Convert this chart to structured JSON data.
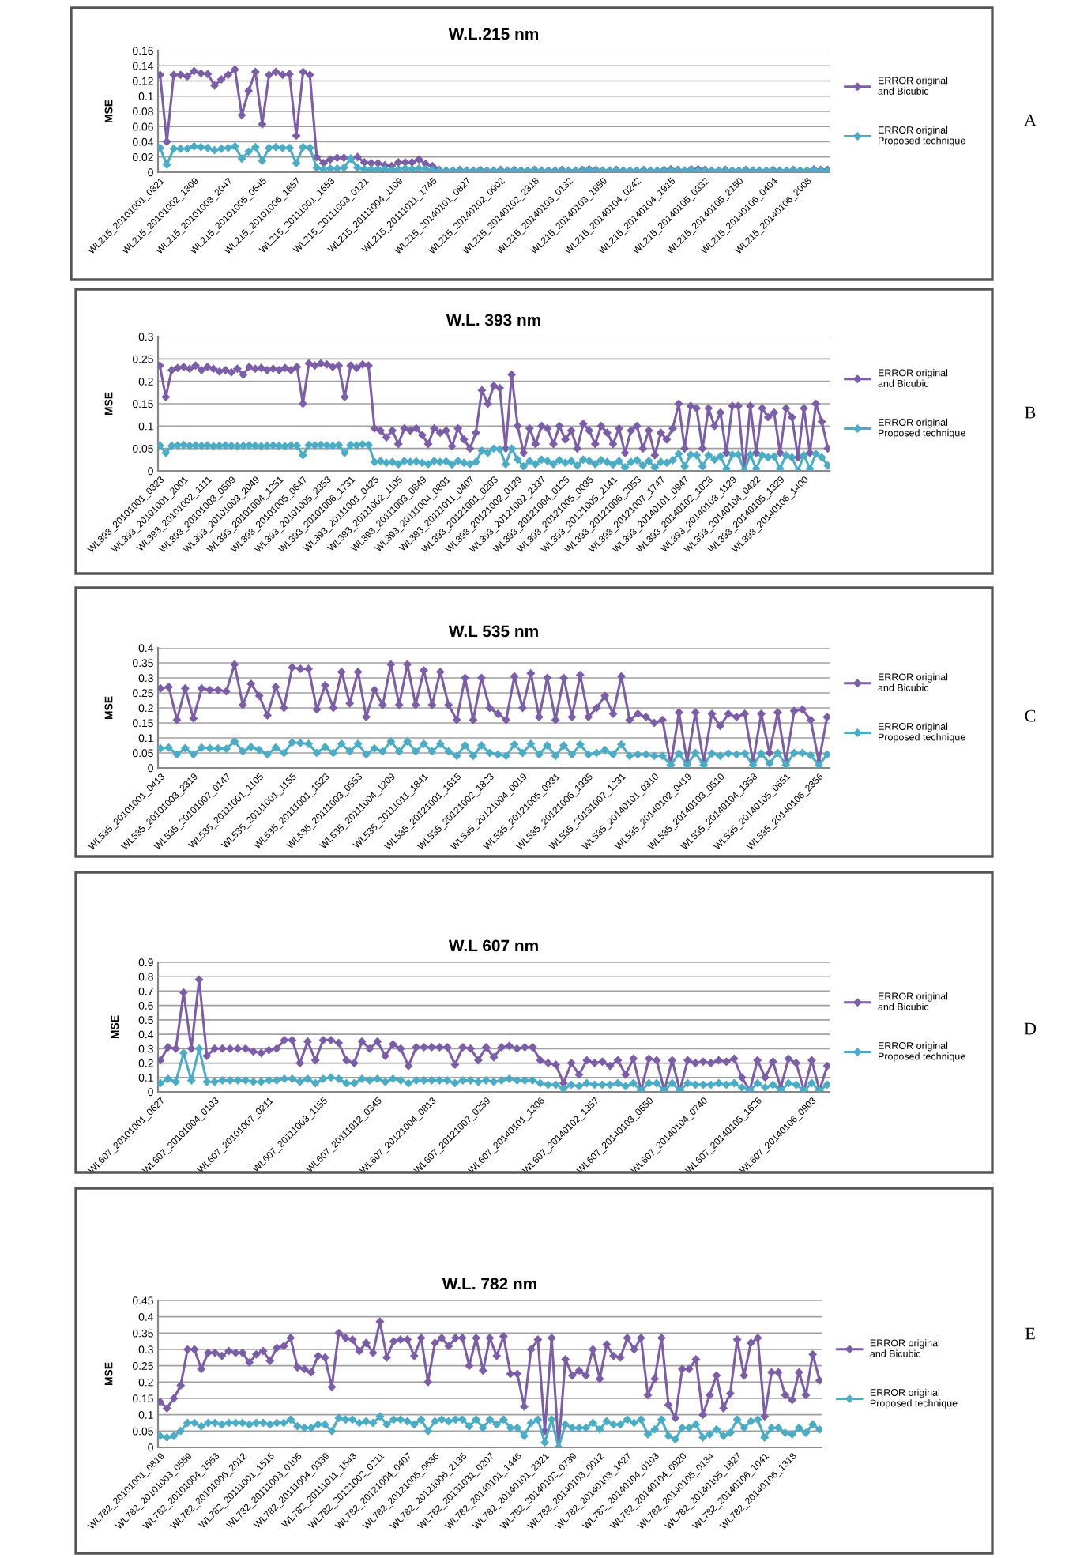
{
  "chart_data": [
    {
      "type": "line",
      "title": "W.L.215 nm",
      "ylabel": "MSE",
      "annotations": [
        "A"
      ],
      "grid": "y",
      "legend": "right",
      "marker": "diamond",
      "ylim": [
        0,
        0.16
      ],
      "yticks": [
        0,
        0.02,
        0.04,
        0.06,
        0.08,
        0.1,
        0.12,
        0.14,
        0.16
      ],
      "categories": [
        "WL215_20101001_0321",
        null,
        null,
        null,
        null,
        "WL215_20101002_1309",
        null,
        null,
        null,
        null,
        "WL215_20101003_2047",
        null,
        null,
        null,
        null,
        "WL215_20101005_0645",
        null,
        null,
        null,
        null,
        "WL215_20101006_1857",
        null,
        null,
        null,
        null,
        "WL215_20111001_1653",
        null,
        null,
        null,
        null,
        "WL215_20111003_0121",
        null,
        null,
        null,
        null,
        "WL215_20111004_1109",
        null,
        null,
        null,
        null,
        "WL215_20111011_1745",
        null,
        null,
        null,
        null,
        "WL215_20140101_0827",
        null,
        null,
        null,
        null,
        "WL215_20140102_0902",
        null,
        null,
        null,
        null,
        "WL215_20140102_2318",
        null,
        null,
        null,
        null,
        "WL215_20140103_0132",
        null,
        null,
        null,
        null,
        "WL215_20140103_1859",
        null,
        null,
        null,
        null,
        "WL215_20140104_0242",
        null,
        null,
        null,
        null,
        "WL215_20140104_1915",
        null,
        null,
        null,
        null,
        "WL215_20140105_0332",
        null,
        null,
        null,
        null,
        "WL215_20140105_2150",
        null,
        null,
        null,
        null,
        "WL215_20140106_0404",
        null,
        null,
        null,
        null,
        "WL215_20140106_2008",
        null,
        null,
        null
      ],
      "series": [
        {
          "name": "ERROR original and Bicubic",
          "color": "#7b5ea7",
          "values": [
            0.128,
            0.04,
            0.128,
            0.128,
            0.126,
            0.133,
            0.13,
            0.129,
            0.114,
            0.122,
            0.128,
            0.135,
            0.075,
            0.107,
            0.132,
            0.063,
            0.128,
            0.132,
            0.128,
            0.129,
            0.048,
            0.132,
            0.128,
            0.02,
            0.012,
            0.017,
            0.019,
            0.019,
            0.018,
            0.02,
            0.013,
            0.012,
            0.012,
            0.009,
            0.008,
            0.013,
            0.013,
            0.013,
            0.017,
            0.011,
            0.008,
            0.003,
            0.002,
            0.002,
            0.003,
            0.002,
            0.002,
            0.003,
            0.002,
            0.002,
            0.003,
            0.002,
            0.003,
            0.002,
            0.002,
            0.003,
            0.002,
            0.002,
            0.002,
            0.003,
            0.002,
            0.002,
            0.003,
            0.004,
            0.003,
            0.002,
            0.002,
            0.003,
            0.002,
            0.002,
            0.002,
            0.003,
            0.002,
            0.002,
            0.003,
            0.004,
            0.003,
            0.002,
            0.004,
            0.004,
            0.003,
            0.002,
            0.002,
            0.003,
            0.002,
            0.002,
            0.003,
            0.002,
            0.002,
            0.002,
            0.003,
            0.002,
            0.002,
            0.003,
            0.002,
            0.002,
            0.004,
            0.003,
            0.003
          ]
        },
        {
          "name": "ERROR original Proposed technique",
          "color": "#4bacc6",
          "values": [
            0.032,
            0.01,
            0.031,
            0.031,
            0.031,
            0.034,
            0.033,
            0.032,
            0.029,
            0.031,
            0.032,
            0.034,
            0.018,
            0.027,
            0.033,
            0.015,
            0.032,
            0.033,
            0.032,
            0.032,
            0.012,
            0.033,
            0.032,
            0.006,
            0.004,
            0.005,
            0.005,
            0.006,
            0.018,
            0.006,
            0.004,
            0.004,
            0.004,
            0.004,
            0.003,
            0.004,
            0.005,
            0.004,
            0.005,
            0.004,
            0.003,
            0.002,
            0.002,
            0.002,
            0.002,
            0.002,
            0.002,
            0.002,
            0.002,
            0.002,
            0.002,
            0.002,
            0.002,
            0.002,
            0.002,
            0.002,
            0.002,
            0.002,
            0.002,
            0.002,
            0.002,
            0.002,
            0.002,
            0.003,
            0.002,
            0.002,
            0.002,
            0.002,
            0.002,
            0.002,
            0.002,
            0.002,
            0.002,
            0.002,
            0.002,
            0.003,
            0.002,
            0.002,
            0.003,
            0.002,
            0.002,
            0.002,
            0.002,
            0.002,
            0.002,
            0.002,
            0.002,
            0.002,
            0.002,
            0.002,
            0.002,
            0.002,
            0.002,
            0.002,
            0.002,
            0.002,
            0.003,
            0.002,
            0.002
          ]
        }
      ]
    },
    {
      "type": "line",
      "title": "W.L. 393 nm",
      "ylabel": "MSE",
      "annotations": [
        "B"
      ],
      "grid": "y",
      "legend": "right",
      "marker": "diamond",
      "ylim": [
        0,
        0.3
      ],
      "yticks": [
        0,
        0.05,
        0.1,
        0.15,
        0.2,
        0.25,
        0.3
      ],
      "categories": [
        "WL393_20101001_0323",
        null,
        null,
        null,
        "WL393_20101001_2001",
        null,
        null,
        null,
        "WL393_20101002_1111",
        null,
        null,
        null,
        "WL393_20101003_0509",
        null,
        null,
        null,
        "WL393_20101003_2049",
        null,
        null,
        null,
        "WL393_20101004_1251",
        null,
        null,
        null,
        "WL393_20101005_0647",
        null,
        null,
        null,
        "WL393_20101005_2353",
        null,
        null,
        null,
        "WL393_20101006_1731",
        null,
        null,
        null,
        "WL393_20111001_0425",
        null,
        null,
        null,
        "WL393_20111002_1105",
        null,
        null,
        null,
        "WL393_20111003_0849",
        null,
        null,
        null,
        "WL393_20111004_0801",
        null,
        null,
        null,
        "WL393_20111011_0407",
        null,
        null,
        null,
        "WL393_20121001_0203",
        null,
        null,
        null,
        "WL393_20121002_0129",
        null,
        null,
        null,
        "WL393_20121002_2337",
        null,
        null,
        null,
        "WL393_20121004_0125",
        null,
        null,
        null,
        "WL393_20121005_0035",
        null,
        null,
        null,
        "WL393_20121005_2141",
        null,
        null,
        null,
        "WL393_20121006_2053",
        null,
        null,
        null,
        "WL393_20121007_1747",
        null,
        null,
        null,
        "WL393_20140101_0947",
        null,
        null,
        null,
        "WL393_20140102_1028",
        null,
        null,
        null,
        "WL393_20140103_1129",
        null,
        null,
        null,
        "WL393_20140104_0422",
        null,
        null,
        null,
        "WL393_20140105_1329",
        null,
        null,
        null,
        "WL393_20140106_1400",
        null,
        null,
        null,
        null
      ],
      "series": [
        {
          "name": "ERROR original and Bicubic",
          "color": "#7b5ea7",
          "values": [
            0.235,
            0.165,
            0.225,
            0.23,
            0.232,
            0.228,
            0.235,
            0.225,
            0.232,
            0.228,
            0.222,
            0.225,
            0.22,
            0.228,
            0.215,
            0.232,
            0.228,
            0.23,
            0.225,
            0.228,
            0.225,
            0.23,
            0.225,
            0.232,
            0.15,
            0.24,
            0.235,
            0.24,
            0.238,
            0.232,
            0.235,
            0.165,
            0.235,
            0.23,
            0.238,
            0.235,
            0.095,
            0.09,
            0.075,
            0.09,
            0.06,
            0.095,
            0.09,
            0.095,
            0.08,
            0.06,
            0.095,
            0.085,
            0.09,
            0.055,
            0.095,
            0.07,
            0.05,
            0.085,
            0.18,
            0.15,
            0.19,
            0.185,
            0.05,
            0.215,
            0.1,
            0.04,
            0.095,
            0.06,
            0.1,
            0.095,
            0.06,
            0.1,
            0.07,
            0.09,
            0.05,
            0.105,
            0.09,
            0.06,
            0.1,
            0.085,
            0.06,
            0.095,
            0.04,
            0.09,
            0.1,
            0.05,
            0.09,
            0.035,
            0.085,
            0.07,
            0.095,
            0.15,
            0.05,
            0.145,
            0.14,
            0.05,
            0.14,
            0.1,
            0.13,
            0.04,
            0.145,
            0.145,
            0.0,
            0.145,
            0.04,
            0.14,
            0.12,
            0.13,
            0.04,
            0.14,
            0.12,
            0.03,
            0.14,
            0.04,
            0.15,
            0.11,
            0.05
          ]
        },
        {
          "name": "ERROR original Proposed technique",
          "color": "#4bacc6",
          "values": [
            0.057,
            0.04,
            0.056,
            0.057,
            0.058,
            0.056,
            0.057,
            0.056,
            0.057,
            0.055,
            0.056,
            0.057,
            0.056,
            0.055,
            0.056,
            0.057,
            0.056,
            0.055,
            0.056,
            0.057,
            0.056,
            0.055,
            0.057,
            0.056,
            0.035,
            0.058,
            0.057,
            0.058,
            0.057,
            0.056,
            0.058,
            0.04,
            0.058,
            0.057,
            0.059,
            0.058,
            0.02,
            0.022,
            0.018,
            0.02,
            0.015,
            0.022,
            0.02,
            0.021,
            0.018,
            0.015,
            0.022,
            0.02,
            0.021,
            0.014,
            0.022,
            0.018,
            0.015,
            0.02,
            0.045,
            0.04,
            0.05,
            0.048,
            0.015,
            0.05,
            0.025,
            0.01,
            0.022,
            0.015,
            0.025,
            0.022,
            0.015,
            0.024,
            0.018,
            0.022,
            0.012,
            0.025,
            0.022,
            0.015,
            0.024,
            0.02,
            0.014,
            0.022,
            0.008,
            0.02,
            0.024,
            0.012,
            0.022,
            0.008,
            0.02,
            0.018,
            0.024,
            0.038,
            0.01,
            0.036,
            0.035,
            0.01,
            0.035,
            0.025,
            0.032,
            0.005,
            0.036,
            0.036,
            0.0,
            0.036,
            0.005,
            0.035,
            0.03,
            0.032,
            0.005,
            0.035,
            0.03,
            0.0,
            0.035,
            0.005,
            0.038,
            0.03,
            0.012
          ]
        }
      ]
    },
    {
      "type": "line",
      "title": "W.L 535 nm",
      "ylabel": "MSE",
      "annotations": [
        "C"
      ],
      "grid": "y",
      "legend": "right",
      "marker": "diamond",
      "ylim": [
        0,
        0.4
      ],
      "yticks": [
        0,
        0.05,
        0.1,
        0.15,
        0.2,
        0.25,
        0.3,
        0.35,
        0.4
      ],
      "categories": [
        "WL535_20101001_0413",
        null,
        null,
        null,
        "WL535_20101003_2319",
        null,
        null,
        null,
        "WL535_20101007_0147",
        null,
        null,
        null,
        "WL535_20111001_1105",
        null,
        null,
        null,
        "WL535_20111001_1155",
        null,
        null,
        null,
        "WL535_20111001_1523",
        null,
        null,
        null,
        "WL535_20111003_0553",
        null,
        null,
        null,
        "WL535_20111004_1209",
        null,
        null,
        null,
        "WL535_20111011_1841",
        null,
        null,
        null,
        "WL535_20121001_1615",
        null,
        null,
        null,
        "WL535_20121002_1823",
        null,
        null,
        null,
        "WL535_20121004_0019",
        null,
        null,
        null,
        "WL535_20121005_0931",
        null,
        null,
        null,
        "WL535_20121006_1935",
        null,
        null,
        null,
        "WL535_20131007_1231",
        null,
        null,
        null,
        "WL535_20140101_0310",
        null,
        null,
        null,
        "WL535_20140102_0419",
        null,
        null,
        null,
        "WL535_20140103_0510",
        null,
        null,
        null,
        "WL535_20140104_1358",
        null,
        null,
        null,
        "WL535_20140105_0651",
        null,
        null,
        null,
        "WL535_20140106_2356",
        null
      ],
      "series": [
        {
          "name": "ERROR original and Bicubic",
          "color": "#7b5ea7",
          "values": [
            0.265,
            0.27,
            0.16,
            0.265,
            0.165,
            0.265,
            0.26,
            0.26,
            0.255,
            0.345,
            0.21,
            0.28,
            0.24,
            0.175,
            0.27,
            0.2,
            0.335,
            0.33,
            0.33,
            0.195,
            0.275,
            0.2,
            0.32,
            0.215,
            0.32,
            0.17,
            0.26,
            0.21,
            0.345,
            0.21,
            0.345,
            0.21,
            0.325,
            0.21,
            0.32,
            0.21,
            0.16,
            0.3,
            0.16,
            0.3,
            0.2,
            0.18,
            0.16,
            0.305,
            0.2,
            0.315,
            0.17,
            0.3,
            0.16,
            0.3,
            0.17,
            0.31,
            0.17,
            0.2,
            0.24,
            0.18,
            0.305,
            0.16,
            0.18,
            0.17,
            0.15,
            0.16,
            0.01,
            0.185,
            0.02,
            0.185,
            0.02,
            0.18,
            0.14,
            0.18,
            0.17,
            0.18,
            0.02,
            0.18,
            0.05,
            0.185,
            0.02,
            0.19,
            0.195,
            0.16,
            0.02,
            0.17
          ]
        },
        {
          "name": "ERROR original Proposed technique",
          "color": "#4bacc6",
          "values": [
            0.065,
            0.068,
            0.045,
            0.066,
            0.045,
            0.068,
            0.066,
            0.065,
            0.064,
            0.088,
            0.055,
            0.07,
            0.06,
            0.045,
            0.068,
            0.05,
            0.085,
            0.083,
            0.08,
            0.05,
            0.07,
            0.05,
            0.08,
            0.055,
            0.08,
            0.045,
            0.065,
            0.055,
            0.088,
            0.055,
            0.088,
            0.055,
            0.08,
            0.055,
            0.08,
            0.055,
            0.04,
            0.075,
            0.04,
            0.075,
            0.05,
            0.045,
            0.04,
            0.078,
            0.05,
            0.08,
            0.045,
            0.075,
            0.04,
            0.075,
            0.045,
            0.078,
            0.045,
            0.05,
            0.06,
            0.045,
            0.078,
            0.04,
            0.045,
            0.045,
            0.04,
            0.04,
            0.01,
            0.048,
            0.01,
            0.05,
            0.01,
            0.048,
            0.04,
            0.048,
            0.045,
            0.048,
            0.01,
            0.048,
            0.015,
            0.05,
            0.01,
            0.05,
            0.05,
            0.042,
            0.01,
            0.045
          ]
        }
      ]
    },
    {
      "type": "line",
      "title": "W.L 607 nm",
      "ylabel": "MSE",
      "annotations": [
        "D"
      ],
      "grid": "y",
      "legend": "right",
      "marker": "diamond",
      "ylim": [
        0,
        0.9
      ],
      "yticks": [
        0,
        0.1,
        0.2,
        0.3,
        0.4,
        0.5,
        0.6,
        0.7,
        0.8,
        0.9
      ],
      "categories": [
        "WL607_20101001_0627",
        null,
        null,
        null,
        null,
        null,
        null,
        "WL607_20101004_0103",
        null,
        null,
        null,
        null,
        null,
        null,
        "WL607_20101007_0211",
        null,
        null,
        null,
        null,
        null,
        null,
        "WL607_20111003_1155",
        null,
        null,
        null,
        null,
        null,
        null,
        "WL607_20111012_0345",
        null,
        null,
        null,
        null,
        null,
        null,
        "WL607_20121004_0813",
        null,
        null,
        null,
        null,
        null,
        null,
        "WL607_20121007_0259",
        null,
        null,
        null,
        null,
        null,
        null,
        "WL607_20140101_1306",
        null,
        null,
        null,
        null,
        null,
        null,
        "WL607_20140102_1357",
        null,
        null,
        null,
        null,
        null,
        null,
        "WL607_20140103_0650",
        null,
        null,
        null,
        null,
        null,
        null,
        "WL607_20140104_0740",
        null,
        null,
        null,
        null,
        null,
        null,
        "WL607_20140105_1626",
        null,
        null,
        null,
        null,
        null,
        null,
        "WL607_20140106_0903",
        null,
        null
      ],
      "series": [
        {
          "name": "ERROR original and Bicubic",
          "color": "#7b5ea7",
          "values": [
            0.22,
            0.31,
            0.3,
            0.69,
            0.3,
            0.78,
            0.25,
            0.3,
            0.3,
            0.3,
            0.3,
            0.3,
            0.28,
            0.27,
            0.29,
            0.3,
            0.36,
            0.36,
            0.2,
            0.35,
            0.22,
            0.36,
            0.36,
            0.34,
            0.22,
            0.2,
            0.35,
            0.3,
            0.35,
            0.25,
            0.33,
            0.3,
            0.18,
            0.31,
            0.31,
            0.31,
            0.31,
            0.31,
            0.19,
            0.31,
            0.3,
            0.22,
            0.31,
            0.24,
            0.31,
            0.32,
            0.3,
            0.31,
            0.31,
            0.22,
            0.2,
            0.19,
            0.06,
            0.2,
            0.12,
            0.22,
            0.2,
            0.21,
            0.18,
            0.22,
            0.12,
            0.23,
            0.01,
            0.23,
            0.22,
            0.01,
            0.22,
            0.01,
            0.22,
            0.2,
            0.21,
            0.2,
            0.22,
            0.21,
            0.23,
            0.1,
            0.01,
            0.22,
            0.1,
            0.21,
            0.03,
            0.23,
            0.2,
            0.01,
            0.22,
            0.01,
            0.18
          ]
        },
        {
          "name": "ERROR original Proposed technique",
          "color": "#4bacc6",
          "values": [
            0.06,
            0.09,
            0.07,
            0.27,
            0.08,
            0.3,
            0.07,
            0.07,
            0.08,
            0.08,
            0.08,
            0.08,
            0.07,
            0.07,
            0.08,
            0.08,
            0.09,
            0.09,
            0.07,
            0.09,
            0.06,
            0.09,
            0.1,
            0.09,
            0.06,
            0.06,
            0.09,
            0.08,
            0.09,
            0.07,
            0.09,
            0.08,
            0.06,
            0.08,
            0.08,
            0.08,
            0.08,
            0.08,
            0.06,
            0.08,
            0.08,
            0.07,
            0.08,
            0.07,
            0.08,
            0.09,
            0.08,
            0.08,
            0.08,
            0.06,
            0.05,
            0.05,
            0.02,
            0.05,
            0.04,
            0.06,
            0.05,
            0.05,
            0.05,
            0.06,
            0.04,
            0.06,
            0.01,
            0.06,
            0.06,
            0.01,
            0.06,
            0.01,
            0.06,
            0.05,
            0.05,
            0.05,
            0.06,
            0.05,
            0.06,
            0.03,
            0.01,
            0.06,
            0.03,
            0.05,
            0.01,
            0.06,
            0.05,
            0.01,
            0.06,
            0.01,
            0.05
          ]
        }
      ]
    },
    {
      "type": "line",
      "title": "W.L. 782 nm",
      "ylabel": "MSE",
      "annotations": [
        "E"
      ],
      "grid": "y",
      "legend": "right",
      "marker": "diamond",
      "ylim": [
        0,
        0.45
      ],
      "yticks": [
        0,
        0.05,
        0.1,
        0.15,
        0.2,
        0.25,
        0.3,
        0.35,
        0.4,
        0.45
      ],
      "categories": [
        "WL782_20101001_0819",
        null,
        null,
        null,
        "WL782_20101003_0559",
        null,
        null,
        null,
        "WL782_20101004_1553",
        null,
        null,
        null,
        "WL782_20101006_2012",
        null,
        null,
        null,
        "WL782_20111001_1515",
        null,
        null,
        null,
        "WL782_20111003_0105",
        null,
        null,
        null,
        "WL782_20111004_0339",
        null,
        null,
        null,
        "WL782_20111011_1543",
        null,
        null,
        null,
        "WL782_20121002_0211",
        null,
        null,
        null,
        "WL782_20121004_0407",
        null,
        null,
        null,
        "WL782_20121005_0635",
        null,
        null,
        null,
        "WL782_20121006_2135",
        null,
        null,
        null,
        "WL782_20131031_0207",
        null,
        null,
        null,
        "WL782_20140101_1446",
        null,
        null,
        null,
        "WL782_20140101_2321",
        null,
        null,
        null,
        "WL782_20140102_0739",
        null,
        null,
        null,
        "WL782_20140103_0012",
        null,
        null,
        null,
        "WL782_20140103_1627",
        null,
        null,
        null,
        "WL782_20140104_0103",
        null,
        null,
        null,
        "WL782_20140104_0920",
        null,
        null,
        null,
        "WL782_20140105_0134",
        null,
        null,
        null,
        "WL782_20140105_1827",
        null,
        null,
        null,
        "WL782_20140106_1041",
        null,
        null,
        null,
        "WL782_20140106_1318",
        null,
        null,
        null,
        null
      ],
      "series": [
        {
          "name": "ERROR original and Bicubic",
          "color": "#7b5ea7",
          "values": [
            0.14,
            0.12,
            0.15,
            0.19,
            0.3,
            0.3,
            0.24,
            0.29,
            0.29,
            0.28,
            0.295,
            0.29,
            0.29,
            0.26,
            0.285,
            0.295,
            0.265,
            0.305,
            0.31,
            0.335,
            0.245,
            0.24,
            0.23,
            0.28,
            0.275,
            0.185,
            0.35,
            0.335,
            0.33,
            0.295,
            0.32,
            0.29,
            0.385,
            0.275,
            0.325,
            0.33,
            0.33,
            0.28,
            0.335,
            0.2,
            0.32,
            0.335,
            0.31,
            0.335,
            0.335,
            0.25,
            0.335,
            0.235,
            0.335,
            0.28,
            0.34,
            0.225,
            0.225,
            0.125,
            0.3,
            0.33,
            0.05,
            0.335,
            0.0,
            0.27,
            0.22,
            0.235,
            0.22,
            0.3,
            0.21,
            0.315,
            0.28,
            0.275,
            0.335,
            0.3,
            0.335,
            0.16,
            0.21,
            0.335,
            0.13,
            0.09,
            0.24,
            0.24,
            0.27,
            0.1,
            0.16,
            0.22,
            0.12,
            0.165,
            0.33,
            0.22,
            0.32,
            0.335,
            0.095,
            0.23,
            0.23,
            0.16,
            0.145,
            0.23,
            0.16,
            0.285,
            0.205
          ]
        },
        {
          "name": "ERROR original Proposed technique",
          "color": "#4bacc6",
          "values": [
            0.035,
            0.03,
            0.035,
            0.05,
            0.075,
            0.075,
            0.065,
            0.075,
            0.075,
            0.07,
            0.075,
            0.075,
            0.075,
            0.07,
            0.075,
            0.075,
            0.07,
            0.075,
            0.075,
            0.085,
            0.065,
            0.06,
            0.06,
            0.07,
            0.07,
            0.05,
            0.09,
            0.085,
            0.085,
            0.075,
            0.08,
            0.075,
            0.095,
            0.07,
            0.085,
            0.085,
            0.08,
            0.07,
            0.085,
            0.05,
            0.08,
            0.085,
            0.08,
            0.085,
            0.085,
            0.065,
            0.085,
            0.06,
            0.085,
            0.07,
            0.085,
            0.06,
            0.06,
            0.035,
            0.075,
            0.085,
            0.015,
            0.085,
            0.0,
            0.07,
            0.06,
            0.06,
            0.06,
            0.075,
            0.055,
            0.08,
            0.07,
            0.07,
            0.085,
            0.075,
            0.085,
            0.04,
            0.055,
            0.085,
            0.035,
            0.025,
            0.06,
            0.06,
            0.07,
            0.03,
            0.04,
            0.055,
            0.035,
            0.045,
            0.085,
            0.06,
            0.08,
            0.085,
            0.03,
            0.06,
            0.06,
            0.045,
            0.04,
            0.06,
            0.045,
            0.07,
            0.055
          ]
        }
      ]
    }
  ]
}
